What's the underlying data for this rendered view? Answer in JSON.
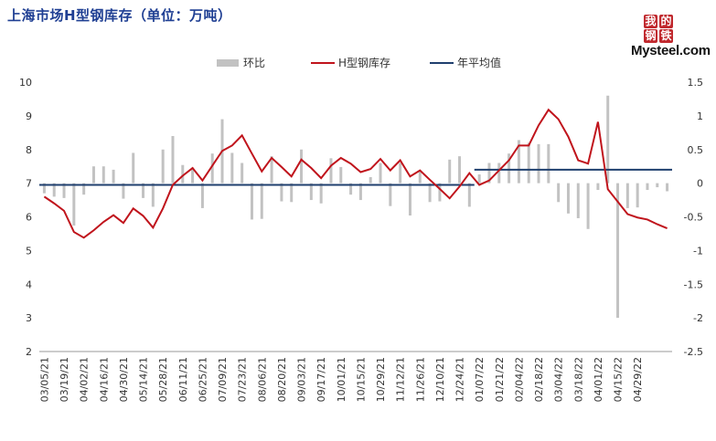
{
  "title": "上海市场H型钢库存（单位：万吨）",
  "logo": {
    "chars": [
      "我",
      "的",
      "钢",
      "铁"
    ],
    "word": "Mysteel.com"
  },
  "colors": {
    "title": "#1f3f93",
    "bar": "#c2c2c2",
    "line": "#c0141c",
    "avg": "#1f3f6e"
  },
  "chart_data": {
    "type": "bar+line",
    "legend_position": "top",
    "grid": false,
    "legend": {
      "bar": "环比",
      "line": "H型钢库存",
      "avg": "年平均值"
    },
    "x_ticks": [
      "03/05/21",
      "03/19/21",
      "04/02/21",
      "04/16/21",
      "04/30/21",
      "05/14/21",
      "05/28/21",
      "06/11/21",
      "06/25/21",
      "07/09/21",
      "07/23/21",
      "08/06/21",
      "08/20/21",
      "09/03/21",
      "09/17/21",
      "10/01/21",
      "10/15/21",
      "10/29/21",
      "11/12/21",
      "11/26/21",
      "12/10/21",
      "12/24/21",
      "01/07/22",
      "01/21/22",
      "02/04/22",
      "02/18/22",
      "03/04/22",
      "03/18/22",
      "04/01/22",
      "04/15/22",
      "04/29/22"
    ],
    "left_axis": {
      "range": [
        2,
        10
      ],
      "ticks": [
        "2",
        "3",
        "4",
        "5",
        "6",
        "7",
        "8",
        "9",
        "10"
      ]
    },
    "right_axis": {
      "range": [
        -2.5,
        1.5
      ],
      "ticks": [
        "-2.5",
        "-2",
        "-1.5",
        "-1",
        "-0.5",
        "0",
        "0.5",
        "1",
        "1.5"
      ]
    },
    "inventory": [
      6.6,
      6.4,
      6.18,
      5.55,
      5.38,
      5.6,
      5.85,
      6.05,
      5.82,
      6.25,
      6.03,
      5.68,
      6.25,
      6.95,
      7.22,
      7.45,
      7.08,
      7.52,
      7.96,
      8.12,
      8.42,
      7.88,
      7.35,
      7.75,
      7.48,
      7.2,
      7.7,
      7.45,
      7.15,
      7.52,
      7.75,
      7.58,
      7.33,
      7.42,
      7.72,
      7.38,
      7.68,
      7.2,
      7.38,
      7.1,
      6.83,
      6.55,
      6.9,
      7.3,
      6.95,
      7.08,
      7.38,
      7.68,
      8.12,
      8.12,
      8.72,
      9.18,
      8.9,
      8.38,
      7.68,
      7.58,
      8.82,
      6.82,
      6.45,
      6.08,
      5.98,
      5.92,
      5.78,
      5.66
    ],
    "wow_change": [
      -0.15,
      -0.2,
      -0.22,
      -0.63,
      -0.17,
      0.25,
      0.25,
      0.2,
      -0.23,
      0.45,
      -0.22,
      -0.35,
      0.5,
      0.7,
      0.27,
      0.23,
      -0.37,
      0.44,
      0.95,
      0.45,
      0.3,
      -0.54,
      -0.53,
      0.4,
      -0.27,
      -0.28,
      0.5,
      -0.25,
      -0.3,
      0.37,
      0.24,
      -0.17,
      -0.25,
      0.09,
      0.3,
      -0.34,
      0.3,
      -0.48,
      0.18,
      -0.28,
      -0.27,
      0.35,
      0.4,
      -0.35,
      0.13,
      0.3,
      0.3,
      0.44,
      0.64,
      0.6,
      0.58,
      0.58,
      -0.28,
      -0.45,
      -0.52,
      -0.68,
      -0.1,
      1.3,
      -2.0,
      -0.37,
      -0.36,
      -0.1,
      -0.06,
      -0.12
    ],
    "annual_average": [
      {
        "label": "2021",
        "value": 6.95
      },
      {
        "label": "2022",
        "value": 7.4
      }
    ]
  }
}
